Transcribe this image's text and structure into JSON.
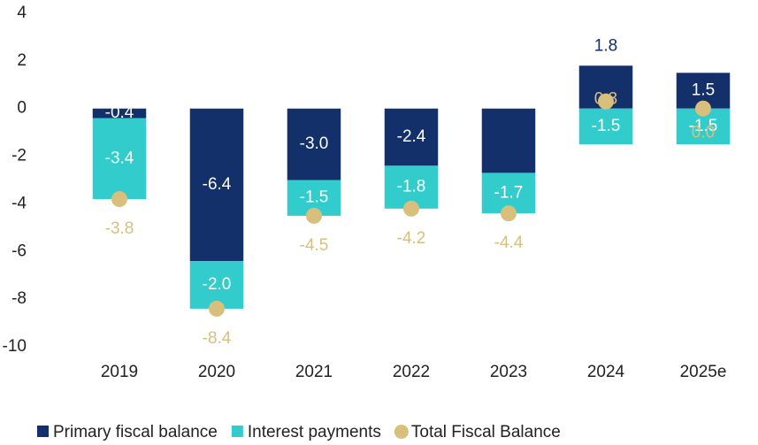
{
  "chart_data": {
    "type": "stacked-bar-dot",
    "categories": [
      "2019",
      "2020",
      "2021",
      "2022",
      "2023",
      "2024",
      "2025e"
    ],
    "series": [
      {
        "name": "Primary fiscal balance",
        "color": "#13306a",
        "kind": "bar",
        "values": [
          -0.4,
          -6.4,
          -3.0,
          -2.4,
          -2.7,
          1.8,
          1.5
        ],
        "value_labels": [
          "-0.4",
          "-6.4",
          "-3.0",
          "-2.4",
          null,
          "1.8",
          "1.5"
        ]
      },
      {
        "name": "Interest payments",
        "color": "#33cccc",
        "kind": "bar",
        "values": [
          -3.4,
          -2.0,
          -1.5,
          -1.8,
          -1.7,
          -1.5,
          -1.5
        ],
        "value_labels": [
          "-3.4",
          "-2.0",
          "-1.5",
          "-1.8",
          "-1.7",
          "-1.5",
          "-1.5"
        ]
      },
      {
        "name": "Total Fiscal Balance",
        "color": "#d9bf7c",
        "kind": "dot",
        "values": [
          -3.8,
          -8.4,
          -4.5,
          -4.2,
          -4.4,
          0.3,
          0.0
        ],
        "value_labels": [
          "-3.8",
          "-8.4",
          "-4.5",
          "-4.2",
          "-4.4",
          "0.3",
          "0.0"
        ]
      }
    ],
    "ylim": [
      -10,
      4
    ],
    "yticks": [
      4,
      2,
      0,
      -2,
      -4,
      -6,
      -8,
      -10
    ],
    "grid": false,
    "legend": "bottom"
  }
}
